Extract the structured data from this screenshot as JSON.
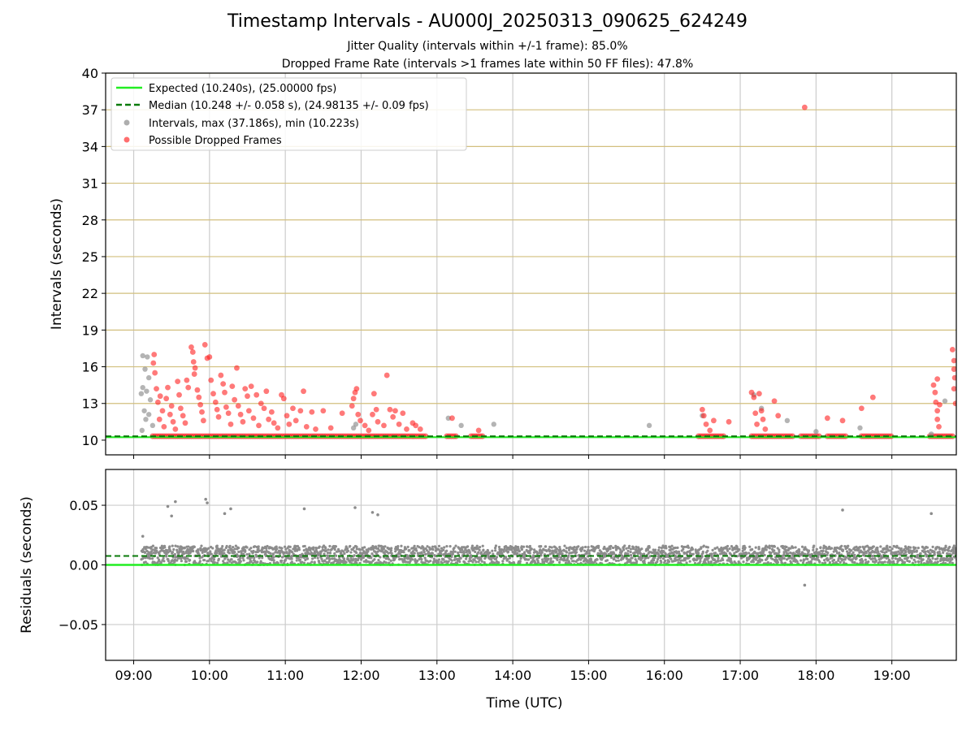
{
  "figure": {
    "title": "Timestamp Intervals - AU000J_20250313_090625_624249",
    "subtitle_1": "Jitter Quality (intervals within +/-1 frame): 85.0%",
    "subtitle_2": "Dropped Frame Rate (intervals >1 frames late within 50 FF files): 47.8%"
  },
  "colors": {
    "expected": "#22ee22",
    "median": "#0a7a0a",
    "intervals": "#8c8c8c",
    "dropped": "#ff2020",
    "hgrid_top": "#d2bf7e",
    "grid": "#cccccc"
  },
  "legend": {
    "placement": "top-left",
    "items": [
      "Expected (10.240s), (25.00000 fps)",
      "Median (10.248 +/- 0.058 s), (24.98135 +/- 0.09 fps)",
      "Intervals, max (37.186s), min (10.223s)",
      "Possible Dropped Frames"
    ]
  },
  "chart_data": [
    {
      "type": "scatter",
      "ylabel": "Intervals (seconds)",
      "xlabel": "",
      "xticks": [
        "09:00",
        "10:00",
        "11:00",
        "12:00",
        "13:00",
        "14:00",
        "15:00",
        "16:00",
        "17:00",
        "18:00",
        "19:00"
      ],
      "xlim_hours": [
        8.63,
        19.85
      ],
      "ylim": [
        8.8,
        40
      ],
      "yticks": [
        10,
        13,
        16,
        19,
        22,
        25,
        28,
        31,
        34,
        37,
        40
      ],
      "grid": true,
      "expected_line": 10.24,
      "median_line": 10.248,
      "max_interval": 37.186,
      "min_interval": 10.223,
      "series": [
        {
          "name": "Intervals",
          "points": [
            [
              9.12,
              16.9
            ],
            [
              9.18,
              16.8
            ],
            [
              9.15,
              15.8
            ],
            [
              9.2,
              15.1
            ],
            [
              9.12,
              14.3
            ],
            [
              9.17,
              14.0
            ],
            [
              9.1,
              13.8
            ],
            [
              9.22,
              13.3
            ],
            [
              9.14,
              12.4
            ],
            [
              9.2,
              12.1
            ],
            [
              9.16,
              11.7
            ],
            [
              9.11,
              10.8
            ],
            [
              9.25,
              11.2
            ],
            [
              11.9,
              11.0
            ],
            [
              11.93,
              11.3
            ],
            [
              13.15,
              11.8
            ],
            [
              13.32,
              11.2
            ],
            [
              13.75,
              11.3
            ],
            [
              15.8,
              11.2
            ],
            [
              16.5,
              12.0
            ],
            [
              17.18,
              13.7
            ],
            [
              17.28,
              12.6
            ],
            [
              17.62,
              11.6
            ],
            [
              18.0,
              10.7
            ],
            [
              18.58,
              11.0
            ],
            [
              19.52,
              10.5
            ],
            [
              19.7,
              13.2
            ]
          ]
        },
        {
          "name": "Possible Dropped Frames",
          "points": [
            [
              9.27,
              17.0
            ],
            [
              9.26,
              16.3
            ],
            [
              9.28,
              15.5
            ],
            [
              9.3,
              14.2
            ],
            [
              9.35,
              13.6
            ],
            [
              9.32,
              13.1
            ],
            [
              9.38,
              12.4
            ],
            [
              9.34,
              11.7
            ],
            [
              9.4,
              11.1
            ],
            [
              9.45,
              14.3
            ],
            [
              9.43,
              13.4
            ],
            [
              9.5,
              12.8
            ],
            [
              9.48,
              12.1
            ],
            [
              9.52,
              11.5
            ],
            [
              9.55,
              10.9
            ],
            [
              9.58,
              14.8
            ],
            [
              9.6,
              13.7
            ],
            [
              9.62,
              12.6
            ],
            [
              9.65,
              12.0
            ],
            [
              9.68,
              11.4
            ],
            [
              9.7,
              14.9
            ],
            [
              9.72,
              14.3
            ],
            [
              9.76,
              17.6
            ],
            [
              9.78,
              17.2
            ],
            [
              9.79,
              16.4
            ],
            [
              9.81,
              15.9
            ],
            [
              9.8,
              15.4
            ],
            [
              9.84,
              14.1
            ],
            [
              9.86,
              13.5
            ],
            [
              9.88,
              12.9
            ],
            [
              9.9,
              12.3
            ],
            [
              9.92,
              11.6
            ],
            [
              9.94,
              17.8
            ],
            [
              9.97,
              16.7
            ],
            [
              10.0,
              16.8
            ],
            [
              10.02,
              14.9
            ],
            [
              10.05,
              13.8
            ],
            [
              10.08,
              13.1
            ],
            [
              10.1,
              12.5
            ],
            [
              10.12,
              11.9
            ],
            [
              10.15,
              15.3
            ],
            [
              10.18,
              14.6
            ],
            [
              10.2,
              13.9
            ],
            [
              10.22,
              12.7
            ],
            [
              10.25,
              12.2
            ],
            [
              10.28,
              11.3
            ],
            [
              10.3,
              14.4
            ],
            [
              10.33,
              13.3
            ],
            [
              10.36,
              15.9
            ],
            [
              10.38,
              12.8
            ],
            [
              10.41,
              12.1
            ],
            [
              10.44,
              11.5
            ],
            [
              10.47,
              14.2
            ],
            [
              10.5,
              13.6
            ],
            [
              10.52,
              12.4
            ],
            [
              10.55,
              14.4
            ],
            [
              10.58,
              11.8
            ],
            [
              10.62,
              13.7
            ],
            [
              10.65,
              11.2
            ],
            [
              10.68,
              13.0
            ],
            [
              10.72,
              12.6
            ],
            [
              10.75,
              14.0
            ],
            [
              10.78,
              11.7
            ],
            [
              10.82,
              12.3
            ],
            [
              10.85,
              11.4
            ],
            [
              10.9,
              11.0
            ],
            [
              10.95,
              13.7
            ],
            [
              10.98,
              13.4
            ],
            [
              11.02,
              12.0
            ],
            [
              11.05,
              11.3
            ],
            [
              11.1,
              12.6
            ],
            [
              11.14,
              11.6
            ],
            [
              11.2,
              12.4
            ],
            [
              11.24,
              14.0
            ],
            [
              11.28,
              11.1
            ],
            [
              11.35,
              12.3
            ],
            [
              11.4,
              10.9
            ],
            [
              11.5,
              12.4
            ],
            [
              11.6,
              11.0
            ],
            [
              11.75,
              12.2
            ],
            [
              11.88,
              12.8
            ],
            [
              11.9,
              13.4
            ],
            [
              11.92,
              13.9
            ],
            [
              11.94,
              14.2
            ],
            [
              11.96,
              12.1
            ],
            [
              11.99,
              11.6
            ],
            [
              12.05,
              11.2
            ],
            [
              12.1,
              10.8
            ],
            [
              12.15,
              12.1
            ],
            [
              12.17,
              13.8
            ],
            [
              12.2,
              12.5
            ],
            [
              12.22,
              11.5
            ],
            [
              12.3,
              11.2
            ],
            [
              12.34,
              15.3
            ],
            [
              12.38,
              12.5
            ],
            [
              12.42,
              11.9
            ],
            [
              12.45,
              12.4
            ],
            [
              12.5,
              11.3
            ],
            [
              12.55,
              12.2
            ],
            [
              12.6,
              10.9
            ],
            [
              12.68,
              11.4
            ],
            [
              12.72,
              11.2
            ],
            [
              12.78,
              10.9
            ],
            [
              13.2,
              11.8
            ],
            [
              13.55,
              10.8
            ],
            [
              16.5,
              12.5
            ],
            [
              16.52,
              12.0
            ],
            [
              16.55,
              11.3
            ],
            [
              16.6,
              10.8
            ],
            [
              16.65,
              11.6
            ],
            [
              16.85,
              11.5
            ],
            [
              17.15,
              13.9
            ],
            [
              17.18,
              13.5
            ],
            [
              17.2,
              12.2
            ],
            [
              17.22,
              11.3
            ],
            [
              17.25,
              13.8
            ],
            [
              17.28,
              12.4
            ],
            [
              17.3,
              11.7
            ],
            [
              17.33,
              10.9
            ],
            [
              17.45,
              13.2
            ],
            [
              17.5,
              12.0
            ],
            [
              17.85,
              37.2
            ],
            [
              18.15,
              11.8
            ],
            [
              18.35,
              11.6
            ],
            [
              18.6,
              12.6
            ],
            [
              18.75,
              13.5
            ],
            [
              19.55,
              14.5
            ],
            [
              19.57,
              13.9
            ],
            [
              19.6,
              15.0
            ],
            [
              19.58,
              13.1
            ],
            [
              19.6,
              12.4
            ],
            [
              19.6,
              11.7
            ],
            [
              19.62,
              11.1
            ],
            [
              19.63,
              12.9
            ],
            [
              19.8,
              17.4
            ],
            [
              19.82,
              16.5
            ],
            [
              19.82,
              15.8
            ],
            [
              19.83,
              15.1
            ],
            [
              19.82,
              14.2
            ],
            [
              19.84,
              13.0
            ]
          ]
        }
      ]
    },
    {
      "type": "scatter",
      "ylabel": "Residuals (seconds)",
      "xlabel": "Time (UTC)",
      "xticks": [
        "09:00",
        "10:00",
        "11:00",
        "12:00",
        "13:00",
        "14:00",
        "15:00",
        "16:00",
        "17:00",
        "18:00",
        "19:00"
      ],
      "xlim_hours": [
        8.63,
        19.85
      ],
      "ylim": [
        -0.08,
        0.08
      ],
      "yticks": [
        "−0.05",
        "0.00",
        "0.05"
      ],
      "ytick_values": [
        -0.05,
        0.0,
        0.05
      ],
      "grid": true,
      "expected_line": 0.0,
      "median_line": 0.0075,
      "band": {
        "x_from": 9.1,
        "x_to": 19.85,
        "y_from": 0.0,
        "y_to": 0.016
      },
      "series": [
        {
          "name": "Residuals",
          "points": [
            [
              9.12,
              0.024
            ],
            [
              9.45,
              0.049
            ],
            [
              9.5,
              0.041
            ],
            [
              9.55,
              0.053
            ],
            [
              9.95,
              0.055
            ],
            [
              9.97,
              0.052
            ],
            [
              10.2,
              0.043
            ],
            [
              10.28,
              0.047
            ],
            [
              11.25,
              0.047
            ],
            [
              11.92,
              0.048
            ],
            [
              12.15,
              0.044
            ],
            [
              12.22,
              0.042
            ],
            [
              17.85,
              -0.017
            ],
            [
              18.35,
              0.046
            ],
            [
              19.52,
              0.043
            ]
          ]
        }
      ]
    }
  ]
}
